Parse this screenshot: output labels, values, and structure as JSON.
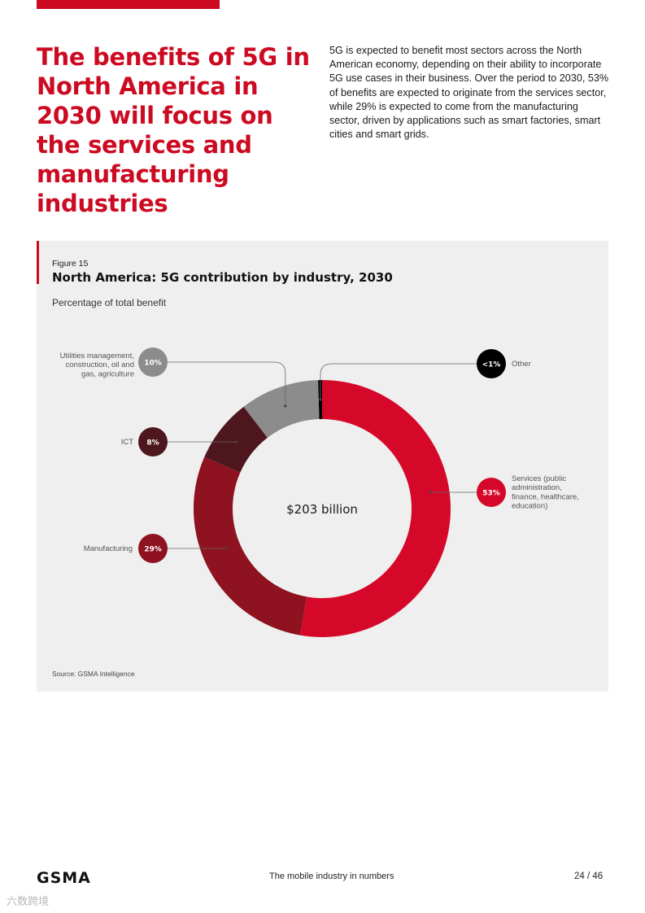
{
  "headline": "The benefits of 5G in North America in 2030 will focus on the services and manufacturing industries",
  "intro": "5G is expected to benefit most sectors across the North American economy, depending on their ability to incorporate 5G use cases in their business. Over the period to 2030, 53% of benefits are expected to originate from the services sector, while 29% is expected to come from the manufacturing sector, driven by applications such as smart factories, smart cities and smart grids.",
  "figure": {
    "label": "Figure 15",
    "title": "North America: 5G contribution by industry, 2030",
    "subtitle": "Percentage of total benefit",
    "source": "Source: GSMA Intelligence"
  },
  "chart_data": {
    "type": "pie",
    "style": "donut",
    "center_label": "$203 billion",
    "slices": [
      {
        "name": "Services (public administration, finance, healthcare, education)",
        "label_lines": [
          "Services (public",
          "administration,",
          "finance, healthcare,",
          "education)"
        ],
        "value": 53,
        "display": "53%",
        "color": "#d6082a"
      },
      {
        "name": "Manufacturing",
        "label_lines": [
          "Manufacturing"
        ],
        "value": 29,
        "display": "29%",
        "color": "#8e1220"
      },
      {
        "name": "ICT",
        "label_lines": [
          "ICT"
        ],
        "value": 8,
        "display": "8%",
        "color": "#4e171d"
      },
      {
        "name": "Utilities management, construction, oil and gas, agriculture",
        "label_lines": [
          "Utilities management,",
          "construction, oil and",
          "gas, agriculture"
        ],
        "value": 10,
        "display": "10%",
        "color": "#8c8c8c"
      },
      {
        "name": "Other",
        "label_lines": [
          "Other"
        ],
        "value": 0.5,
        "display": "<1%",
        "color": "#000000"
      }
    ]
  },
  "footer": {
    "logo": "GSMA",
    "center": "The mobile industry in numbers",
    "page": "24 / 46"
  },
  "watermark": "六数跨境"
}
